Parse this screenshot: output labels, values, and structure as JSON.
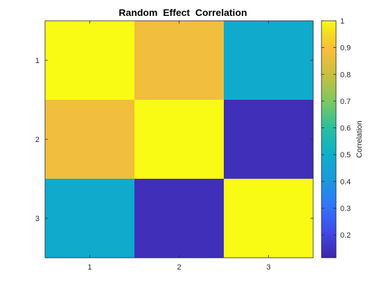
{
  "chart_data": {
    "type": "heatmap",
    "title": "Random  Effect  Correlation",
    "x_categories": [
      "1",
      "2",
      "3"
    ],
    "y_categories": [
      "1",
      "2",
      "3"
    ],
    "values": [
      [
        1.0,
        0.88,
        0.48
      ],
      [
        0.88,
        1.0,
        0.14
      ],
      [
        0.48,
        0.14,
        1.0
      ]
    ],
    "colorbar": {
      "label": "Correlation",
      "range": [
        0.115,
        1.0
      ],
      "ticks": [
        0.2,
        0.3,
        0.4,
        0.5,
        0.6,
        0.7,
        0.8,
        0.9,
        1
      ],
      "tick_labels": [
        "0.2",
        "0.3",
        "0.4",
        "0.5",
        "0.6",
        "0.7",
        "0.8",
        "0.9",
        "1"
      ],
      "colormap": "parula"
    },
    "grid": false
  }
}
